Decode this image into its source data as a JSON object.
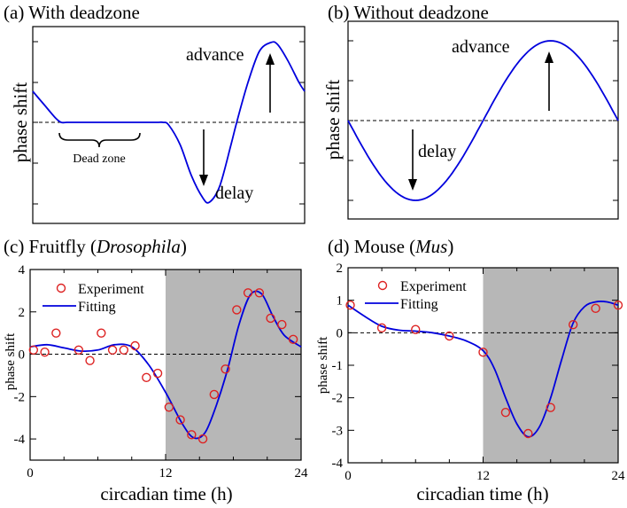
{
  "colors": {
    "curve": "#0000dd",
    "points": "#dd2222",
    "night_shade": "#b7b7b7",
    "axis": "#000000"
  },
  "chart_data": [
    {
      "panel_label": "(a) With deadzone",
      "type": "line",
      "ylabel": "phase shift",
      "annotations": {
        "advance": "advance",
        "delay": "delay",
        "dead_zone": "Dead zone"
      },
      "series": [
        {
          "x": [
            0,
            1,
            2,
            2.5,
            3,
            4,
            6,
            8,
            10,
            11,
            11.5,
            12,
            13,
            14,
            15,
            15.6,
            16.5,
            17.5,
            18,
            19,
            20,
            21,
            21.6,
            22.5,
            23.5,
            24
          ],
          "y": [
            0.35,
            0.2,
            0.05,
            0.0,
            0.0,
            0.0,
            0.0,
            0.0,
            0.0,
            0.0,
            0.0,
            -0.03,
            -0.25,
            -0.6,
            -0.85,
            -0.9,
            -0.72,
            -0.25,
            0.0,
            0.45,
            0.8,
            0.9,
            0.88,
            0.7,
            0.45,
            0.35
          ]
        }
      ]
    },
    {
      "panel_label": "(b) Without deadzone",
      "type": "line",
      "ylabel": "phase shift",
      "annotations": {
        "advance": "advance",
        "delay": "delay"
      },
      "series": [
        {
          "function": "-sin(2*pi*t/24)",
          "xlim": [
            0,
            24
          ]
        }
      ]
    },
    {
      "panel_label_prefix": "(c) Fruitfly (",
      "panel_label_italic": "Drosophila",
      "panel_label_suffix": ")",
      "type": "scatter+line",
      "xlabel": "circadian time (h)",
      "ylabel": "phase shift",
      "xlim": [
        0,
        24
      ],
      "ylim": [
        -5,
        4
      ],
      "xticks": [
        "0",
        "12",
        "24"
      ],
      "yticks": [
        "4",
        "2",
        "0",
        "-2",
        "-4"
      ],
      "night_shaded_from": 12,
      "legend": {
        "position": "top-left",
        "experiment": "Experiment",
        "fitting": "Fitting"
      },
      "experiment": [
        [
          0.3,
          0.2
        ],
        [
          1.3,
          0.1
        ],
        [
          2.3,
          1.0
        ],
        [
          4.3,
          0.2
        ],
        [
          5.3,
          -0.3
        ],
        [
          6.3,
          1.0
        ],
        [
          7.3,
          0.2
        ],
        [
          8.3,
          0.2
        ],
        [
          9.3,
          0.4
        ],
        [
          10.3,
          -1.1
        ],
        [
          11.3,
          -0.9
        ],
        [
          12.3,
          -2.5
        ],
        [
          13.3,
          -3.1
        ],
        [
          14.3,
          -3.8
        ],
        [
          15.3,
          -4.0
        ],
        [
          16.3,
          -1.9
        ],
        [
          17.3,
          -0.7
        ],
        [
          18.3,
          2.1
        ],
        [
          19.3,
          2.9
        ],
        [
          20.3,
          2.9
        ],
        [
          21.3,
          1.7
        ],
        [
          22.3,
          1.4
        ],
        [
          23.3,
          0.7
        ]
      ],
      "fitting": [
        [
          0,
          0.35
        ],
        [
          1.5,
          0.45
        ],
        [
          3,
          0.3
        ],
        [
          4.5,
          0.15
        ],
        [
          6,
          0.2
        ],
        [
          7.5,
          0.45
        ],
        [
          9,
          0.35
        ],
        [
          10.5,
          -0.5
        ],
        [
          12,
          -1.8
        ],
        [
          13.5,
          -3.3
        ],
        [
          14.5,
          -3.95
        ],
        [
          15.5,
          -3.7
        ],
        [
          16.5,
          -2.4
        ],
        [
          17.5,
          -0.7
        ],
        [
          18.5,
          1.4
        ],
        [
          19.5,
          2.8
        ],
        [
          20.5,
          2.85
        ],
        [
          21.5,
          1.8
        ],
        [
          22.5,
          0.9
        ],
        [
          24,
          0.35
        ]
      ]
    },
    {
      "panel_label_prefix": "(d) Mouse (",
      "panel_label_italic": "Mus",
      "panel_label_suffix": ")",
      "type": "scatter+line",
      "xlabel": "circadian time (h)",
      "ylabel": "phase shift",
      "xlim": [
        0,
        24
      ],
      "ylim": [
        -4,
        2
      ],
      "xticks": [
        "0",
        "12",
        "24"
      ],
      "yticks": [
        "2",
        "1",
        "0",
        "-1",
        "-2",
        "-3",
        "-4"
      ],
      "night_shaded_from": 12,
      "legend": {
        "position": "top-left",
        "experiment": "Experiment",
        "fitting": "Fitting"
      },
      "experiment": [
        [
          0.2,
          0.85
        ],
        [
          3,
          0.15
        ],
        [
          6,
          0.1
        ],
        [
          9,
          -0.1
        ],
        [
          12,
          -0.6
        ],
        [
          14,
          -2.45
        ],
        [
          16,
          -3.1
        ],
        [
          18,
          -2.3
        ],
        [
          20,
          0.25
        ],
        [
          22,
          0.75
        ],
        [
          24,
          0.85
        ]
      ],
      "fitting": [
        [
          0,
          0.85
        ],
        [
          1.5,
          0.5
        ],
        [
          3,
          0.2
        ],
        [
          4.5,
          0.08
        ],
        [
          6,
          0.05
        ],
        [
          7.5,
          0.0
        ],
        [
          9,
          -0.1
        ],
        [
          10.5,
          -0.25
        ],
        [
          12,
          -0.55
        ],
        [
          13,
          -1.1
        ],
        [
          14,
          -2.0
        ],
        [
          15,
          -2.8
        ],
        [
          16,
          -3.2
        ],
        [
          17,
          -2.9
        ],
        [
          18,
          -2.0
        ],
        [
          19,
          -0.8
        ],
        [
          20,
          0.3
        ],
        [
          21,
          0.8
        ],
        [
          22,
          0.95
        ],
        [
          23,
          0.95
        ],
        [
          24,
          0.85
        ]
      ]
    }
  ]
}
